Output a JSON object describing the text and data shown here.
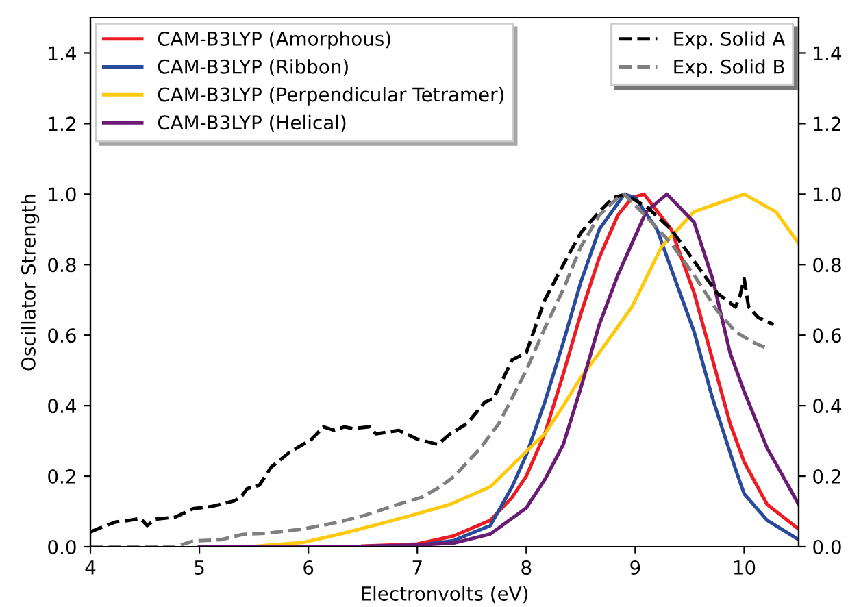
{
  "chart_data": {
    "type": "line",
    "xlabel": "Electronvolts (eV)",
    "ylabel": "Oscillator Strength",
    "xlim": [
      4,
      10.5
    ],
    "xticks": [
      4,
      5,
      6,
      7,
      8,
      9,
      10
    ],
    "ylim": [
      0,
      1.5
    ],
    "yticks": [
      {
        "value": 0,
        "label": "0.0"
      },
      {
        "value": 0.2,
        "label": "0.2"
      },
      {
        "value": 0.4,
        "label": "0.4"
      },
      {
        "value": 0.6,
        "label": "0.6"
      },
      {
        "value": 0.8,
        "label": "0.8"
      },
      {
        "value": 1.0,
        "label": "1.0"
      },
      {
        "value": 1.2,
        "label": "1.2"
      },
      {
        "value": 1.4,
        "label": "1.4"
      }
    ],
    "y2lim": [
      0,
      1.5
    ],
    "y2ticks": [
      {
        "value": 0,
        "label": "0.0"
      },
      {
        "value": 0.2,
        "label": "0.2"
      },
      {
        "value": 0.4,
        "label": "0.4"
      },
      {
        "value": 0.6,
        "label": "0.6"
      },
      {
        "value": 0.8,
        "label": "0.8"
      },
      {
        "value": 1.0,
        "label": "1.0"
      },
      {
        "value": 1.2,
        "label": "1.2"
      },
      {
        "value": 1.4,
        "label": "1.4"
      }
    ],
    "grid": false,
    "legend": [
      "top left",
      "top right"
    ],
    "line_style": "solid",
    "series": [
      {
        "name": "CAM-B3LYP (Amorphous)",
        "color": "#ed1c24",
        "x": [
          6.5,
          7,
          7.33,
          7.67,
          7.87,
          8.0,
          8.17,
          8.34,
          8.5,
          8.67,
          8.84,
          8.97,
          9.08,
          9.33,
          9.54,
          9.71,
          9.87,
          10,
          10.21,
          10.5
        ],
        "values": [
          0.002,
          0.008,
          0.03,
          0.075,
          0.14,
          0.2,
          0.32,
          0.49,
          0.66,
          0.82,
          0.94,
          0.99,
          1.0,
          0.9,
          0.72,
          0.53,
          0.35,
          0.24,
          0.12,
          0.05
        ]
      },
      {
        "name": "CAM-B3LYP (Ribbon)",
        "color": "#2a4b9b",
        "x": [
          6.5,
          7,
          7.33,
          7.67,
          7.87,
          8.0,
          8.17,
          8.34,
          8.5,
          8.67,
          8.9,
          9.0,
          9.2,
          9.41,
          9.54,
          9.71,
          9.92,
          10,
          10.21,
          10.5
        ],
        "values": [
          0.001,
          0.004,
          0.017,
          0.06,
          0.17,
          0.26,
          0.41,
          0.58,
          0.75,
          0.9,
          1.0,
          0.99,
          0.9,
          0.72,
          0.61,
          0.42,
          0.22,
          0.15,
          0.075,
          0.02
        ]
      },
      {
        "name": "CAM-B3LYP (Perpendicular Tetramer)",
        "color": "#ffc90e",
        "x": [
          5.5,
          5.95,
          6.28,
          6.62,
          6.96,
          7.3,
          7.67,
          8.0,
          8.17,
          8.34,
          8.5,
          8.67,
          8.97,
          9.24,
          9.54,
          10,
          10.29,
          10.5
        ],
        "values": [
          0.001,
          0.012,
          0.035,
          0.062,
          0.09,
          0.12,
          0.17,
          0.27,
          0.32,
          0.4,
          0.48,
          0.55,
          0.68,
          0.85,
          0.95,
          1.0,
          0.95,
          0.86
        ]
      },
      {
        "name": "CAM-B3LYP (Helical)",
        "color": "#6a1b73",
        "x": [
          5,
          6,
          6.5,
          7,
          7.33,
          7.67,
          8.0,
          8.17,
          8.34,
          8.5,
          8.67,
          8.84,
          8.97,
          9.1,
          9.29,
          9.54,
          9.71,
          9.87,
          10,
          10.21,
          10.5
        ],
        "values": [
          0,
          0,
          0.001,
          0.005,
          0.01,
          0.036,
          0.11,
          0.19,
          0.29,
          0.45,
          0.63,
          0.77,
          0.86,
          0.95,
          1.0,
          0.92,
          0.76,
          0.55,
          0.44,
          0.28,
          0.12
        ]
      },
      {
        "name": "Exp. Solid A",
        "color": "#000000",
        "line_style": "dashed",
        "x": [
          4.0,
          4.1,
          4.23,
          4.36,
          4.46,
          4.52,
          4.6,
          4.78,
          4.94,
          5.11,
          5.32,
          5.38,
          5.44,
          5.55,
          5.66,
          5.82,
          6.03,
          6.14,
          6.24,
          6.33,
          6.41,
          6.56,
          6.62,
          6.83,
          7.0,
          7.19,
          7.3,
          7.46,
          7.62,
          7.7,
          7.87,
          8.0,
          8.17,
          8.34,
          8.5,
          8.67,
          8.8,
          8.91,
          9.12,
          9.33,
          9.54,
          9.75,
          9.92,
          9.96,
          10.0,
          10.04,
          10.13,
          10.27
        ],
        "values": [
          0.042,
          0.055,
          0.07,
          0.075,
          0.08,
          0.06,
          0.078,
          0.084,
          0.108,
          0.114,
          0.13,
          0.14,
          0.165,
          0.174,
          0.226,
          0.266,
          0.305,
          0.34,
          0.33,
          0.34,
          0.335,
          0.34,
          0.32,
          0.33,
          0.305,
          0.29,
          0.32,
          0.35,
          0.41,
          0.42,
          0.53,
          0.55,
          0.7,
          0.8,
          0.89,
          0.95,
          0.99,
          1.0,
          0.96,
          0.9,
          0.81,
          0.72,
          0.68,
          0.71,
          0.76,
          0.68,
          0.65,
          0.63
        ]
      },
      {
        "name": "Exp. Solid B",
        "color": "#7f7f7f",
        "line_style": "dashed",
        "x": [
          4.0,
          4.78,
          4.94,
          5.2,
          5.4,
          5.61,
          5.95,
          6.28,
          6.53,
          6.79,
          7.04,
          7.21,
          7.34,
          7.44,
          7.58,
          7.75,
          8.0,
          8.17,
          8.34,
          8.5,
          8.67,
          8.84,
          8.9,
          9.12,
          9.33,
          9.54,
          9.75,
          9.92,
          10.08,
          10.23
        ],
        "values": [
          0,
          0,
          0.016,
          0.02,
          0.035,
          0.038,
          0.05,
          0.07,
          0.09,
          0.117,
          0.14,
          0.17,
          0.2,
          0.233,
          0.28,
          0.35,
          0.5,
          0.62,
          0.73,
          0.85,
          0.94,
          0.99,
          1.0,
          0.93,
          0.86,
          0.77,
          0.67,
          0.61,
          0.58,
          0.56
        ]
      }
    ]
  }
}
